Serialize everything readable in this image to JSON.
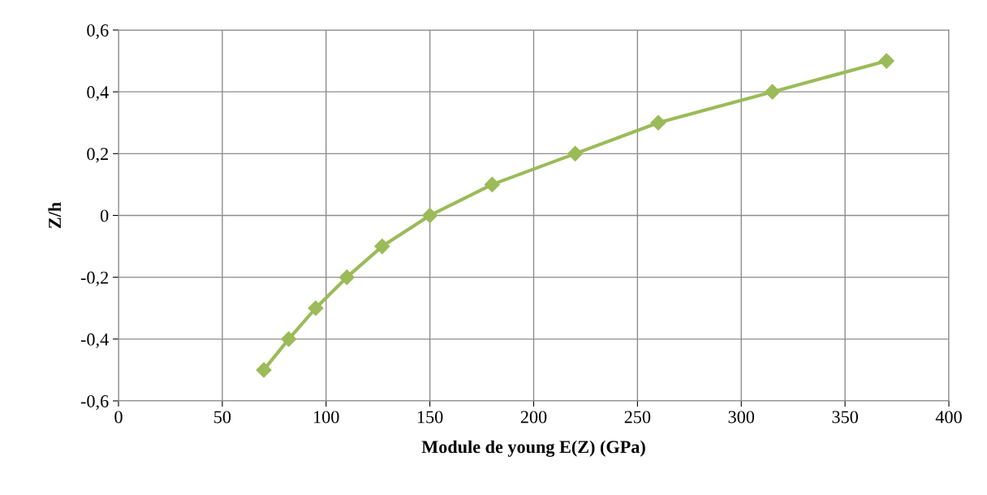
{
  "chart_data": {
    "type": "line",
    "xlabel": "Module de young E(Z) (GPa)",
    "ylabel": "Z/h",
    "series": [
      {
        "color": "#9bbb59",
        "x": [
          70,
          82,
          95,
          110,
          127,
          150,
          180,
          220,
          260,
          315,
          370
        ],
        "values": [
          -0.5,
          -0.4,
          -0.3,
          -0.2,
          -0.1,
          0,
          0.1,
          0.2,
          0.3,
          0.4,
          0.5
        ]
      }
    ],
    "xlim": [
      0,
      400
    ],
    "xticks": [
      0,
      50,
      100,
      150,
      200,
      250,
      300,
      350,
      400
    ],
    "ylim": [
      -0.6,
      0.6
    ],
    "yticks": [
      {
        "value": -0.6,
        "label": "-0,6"
      },
      {
        "value": -0.4,
        "label": "-0,4"
      },
      {
        "value": -0.2,
        "label": "-0,2"
      },
      0,
      {
        "value": 0.2,
        "label": "0,2"
      },
      {
        "value": 0.4,
        "label": "0,4"
      },
      {
        "value": 0.6,
        "label": "0,6"
      }
    ],
    "grid": true,
    "marker": "diamond",
    "line_style": "solid"
  }
}
